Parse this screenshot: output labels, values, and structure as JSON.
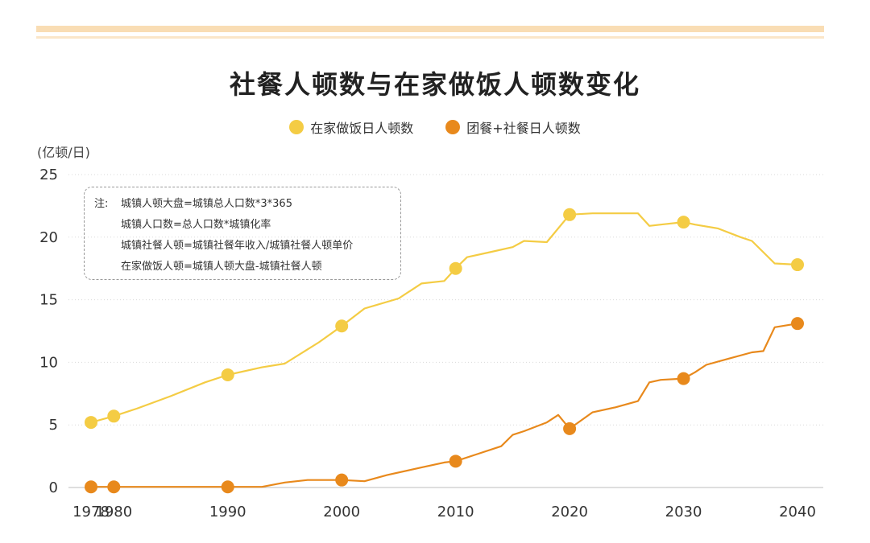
{
  "title": "社餐人顿数与在家做饭人顿数变化",
  "unit_label": "(亿顿/日)",
  "note": {
    "prefix": "注:",
    "lines": [
      "城镇人顿大盘=城镇总人口数*3*365",
      "城镇人口数=总人口数*城镇化率",
      "城镇社餐人顿=城镇社餐年收入/城镇社餐人顿单价",
      "在家做饭人顿=城镇人顿大盘-城镇社餐人顿"
    ]
  },
  "chart_data": {
    "type": "line",
    "xlim": [
      1978,
      2040
    ],
    "ylim": [
      0,
      25
    ],
    "x_ticks": [
      1978,
      1980,
      1990,
      2000,
      2010,
      2020,
      2030,
      2040
    ],
    "y_ticks": [
      0,
      5,
      10,
      15,
      20,
      25
    ],
    "grid": "horizontal dotted",
    "legend_position": "top-center",
    "series": [
      {
        "name": "在家做饭日人顿数",
        "color": "#f4cc44",
        "x": [
          1978,
          1980,
          1982,
          1985,
          1988,
          1990,
          1993,
          1995,
          1998,
          2000,
          2002,
          2005,
          2007,
          2009,
          2010,
          2011,
          2013,
          2015,
          2016,
          2018,
          2020,
          2022,
          2024,
          2026,
          2027,
          2028,
          2030,
          2031,
          2033,
          2035,
          2036,
          2038,
          2040
        ],
        "values": [
          5.2,
          5.7,
          6.3,
          7.3,
          8.4,
          9.0,
          9.6,
          9.9,
          11.6,
          12.9,
          14.3,
          15.1,
          16.3,
          16.5,
          17.5,
          18.4,
          18.8,
          19.2,
          19.7,
          19.6,
          21.8,
          21.9,
          21.9,
          21.9,
          20.9,
          21.0,
          21.2,
          21.0,
          20.7,
          20.0,
          19.7,
          17.9,
          17.8
        ]
      },
      {
        "name": "团餐+社餐日人顿数",
        "color": "#e8891c",
        "x": [
          1978,
          1980,
          1990,
          1993,
          1995,
          1997,
          2000,
          2002,
          2004,
          2006,
          2007,
          2009,
          2010,
          2012,
          2014,
          2015,
          2016,
          2018,
          2019,
          2020,
          2022,
          2024,
          2026,
          2027,
          2028,
          2030,
          2031,
          2032,
          2034,
          2036,
          2037,
          2038,
          2040
        ],
        "values": [
          0.05,
          0.05,
          0.05,
          0.05,
          0.4,
          0.6,
          0.6,
          0.5,
          1.0,
          1.4,
          1.6,
          2.0,
          2.1,
          2.7,
          3.3,
          4.2,
          4.5,
          5.2,
          5.8,
          4.7,
          6.0,
          6.4,
          6.9,
          8.4,
          8.6,
          8.7,
          9.2,
          9.8,
          10.3,
          10.8,
          10.9,
          12.8,
          13.1
        ]
      }
    ],
    "markers": [
      {
        "series": 0,
        "x": [
          1978,
          1980,
          1990,
          2000,
          2010,
          2020,
          2030,
          2040
        ]
      },
      {
        "series": 1,
        "x": [
          1978,
          1980,
          1990,
          2000,
          2010,
          2020,
          2030,
          2040
        ]
      }
    ]
  }
}
